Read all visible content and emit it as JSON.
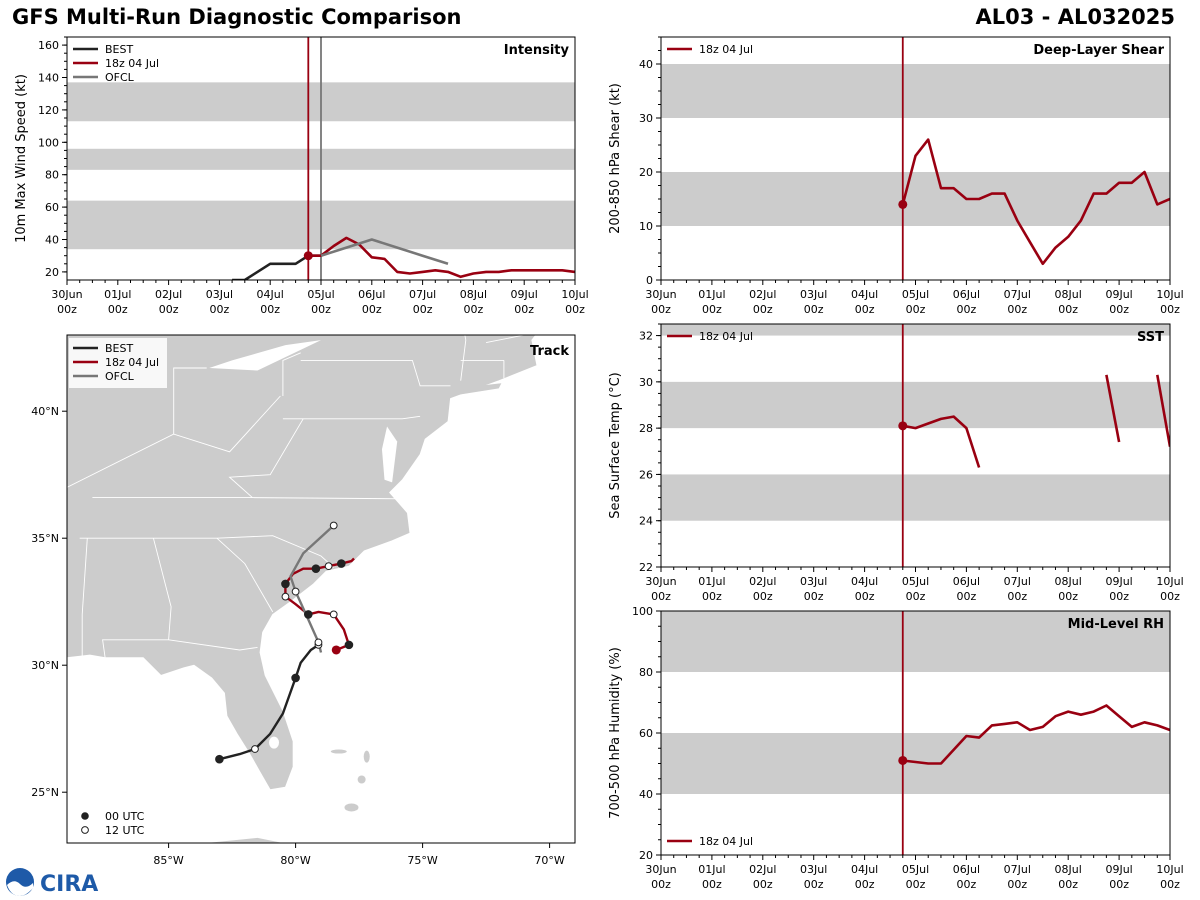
{
  "header": {
    "title": "GFS Multi-Run Diagnostic Comparison",
    "storm_id": "AL03 - AL032025"
  },
  "logo": {
    "text": "CIRA"
  },
  "colors": {
    "best": "#222222",
    "run": "#990011",
    "ofcl": "#777777",
    "band": "#cccccc",
    "land": "#cccccc",
    "border": "#ffffff"
  },
  "legend": {
    "best": "BEST",
    "run": "18z 04 Jul",
    "ofcl": "OFCL",
    "utc00": "00 UTC",
    "utc12": "12 UTC"
  },
  "time_axis": {
    "start_day": 0,
    "end_day": 10,
    "ticks": [
      [
        "30Jun",
        "00z"
      ],
      [
        "01Jul",
        "00z"
      ],
      [
        "02Jul",
        "00z"
      ],
      [
        "03Jul",
        "00z"
      ],
      [
        "04Jul",
        "00z"
      ],
      [
        "05Jul",
        "00z"
      ],
      [
        "06Jul",
        "00z"
      ],
      [
        "07Jul",
        "00z"
      ],
      [
        "08Jul",
        "00z"
      ],
      [
        "09Jul",
        "00z"
      ],
      [
        "10Jul",
        "00z"
      ]
    ]
  },
  "chart_data": [
    {
      "id": "intensity",
      "type": "line",
      "title": "Intensity",
      "ylabel": "10m Max Wind Speed (kt)",
      "ylim": [
        15,
        165
      ],
      "yticks": [
        20,
        40,
        60,
        80,
        100,
        120,
        140,
        160
      ],
      "bands": [
        [
          34,
          64
        ],
        [
          83,
          96
        ],
        [
          113,
          137
        ]
      ],
      "vlines": [
        {
          "x": 4.75,
          "series": "run"
        },
        {
          "x": 5.0,
          "series": "ofcl"
        }
      ],
      "series": [
        {
          "name": "BEST",
          "key": "best",
          "x": [
            3.25,
            3.5,
            4.0,
            4.5,
            4.75,
            5.0
          ],
          "y": [
            15,
            15,
            25,
            25,
            30,
            30
          ]
        },
        {
          "name": "18z 04 Jul",
          "key": "run",
          "x": [
            4.75,
            5.0,
            5.25,
            5.5,
            5.75,
            6.0,
            6.25,
            6.5,
            6.75,
            7.0,
            7.25,
            7.5,
            7.75,
            8.0,
            8.25,
            8.5,
            8.75,
            9.0,
            9.25,
            9.5,
            9.75,
            10.0
          ],
          "y": [
            30,
            30,
            36,
            41,
            37,
            29,
            28,
            20,
            19,
            20,
            21,
            20,
            17,
            19,
            20,
            20,
            21,
            21,
            21,
            21,
            21,
            20
          ],
          "start_marker": true
        },
        {
          "name": "OFCL",
          "key": "ofcl",
          "x": [
            5.0,
            5.5,
            6.0,
            6.5,
            7.0,
            7.5
          ],
          "y": [
            30,
            35,
            40,
            35,
            30,
            25
          ]
        }
      ]
    },
    {
      "id": "shear",
      "type": "line",
      "title": "Deep-Layer Shear",
      "ylabel": "200-850 hPa Shear (kt)",
      "ylim": [
        0,
        45
      ],
      "yticks": [
        0,
        10,
        20,
        30,
        40
      ],
      "bands": [
        [
          10,
          20
        ],
        [
          30,
          40
        ]
      ],
      "vlines": [
        {
          "x": 4.75,
          "series": "run"
        }
      ],
      "series": [
        {
          "name": "18z 04 Jul",
          "key": "run",
          "x": [
            4.75,
            5.0,
            5.25,
            5.5,
            5.75,
            6.0,
            6.25,
            6.5,
            6.75,
            7.0,
            7.25,
            7.5,
            7.75,
            8.0,
            8.25,
            8.5,
            8.75,
            9.0,
            9.25,
            9.5,
            9.75,
            10.0
          ],
          "y": [
            14,
            23,
            26,
            17,
            17,
            15,
            15,
            16,
            16,
            11,
            7,
            3,
            6,
            8,
            11,
            16,
            16,
            18,
            18,
            20,
            14,
            15
          ],
          "start_marker": true
        }
      ]
    },
    {
      "id": "sst",
      "type": "line",
      "title": "SST",
      "ylabel": "Sea Surface Temp (°C)",
      "ylim": [
        22,
        32.5
      ],
      "yticks": [
        22,
        24,
        26,
        28,
        30,
        32
      ],
      "bands": [
        [
          24,
          26
        ],
        [
          28,
          30
        ],
        [
          32,
          32.5
        ]
      ],
      "vlines": [
        {
          "x": 4.75,
          "series": "run"
        }
      ],
      "series": [
        {
          "name": "18z 04 Jul",
          "key": "run",
          "x": [
            4.75,
            5.0,
            5.25,
            5.5,
            5.75,
            6.0,
            6.25
          ],
          "y": [
            28.1,
            28.0,
            28.2,
            28.4,
            28.5,
            28.0,
            26.3
          ],
          "start_marker": true
        },
        {
          "name": "18z 04 Jul",
          "key": "run",
          "x": [
            8.75,
            9.0
          ],
          "y": [
            30.3,
            27.4
          ]
        },
        {
          "name": "18z 04 Jul",
          "key": "run",
          "x": [
            9.75,
            10.0
          ],
          "y": [
            30.3,
            27.2
          ]
        }
      ]
    },
    {
      "id": "rh",
      "type": "line",
      "title": "Mid-Level RH",
      "ylabel": "700-500 hPa Humidity (%)",
      "ylim": [
        20,
        100
      ],
      "yticks": [
        20,
        40,
        60,
        80,
        100
      ],
      "bands": [
        [
          40,
          60
        ],
        [
          80,
          100
        ]
      ],
      "vlines": [
        {
          "x": 4.75,
          "series": "run"
        }
      ],
      "series": [
        {
          "name": "18z 04 Jul",
          "key": "run",
          "x": [
            4.75,
            5.0,
            5.25,
            5.5,
            5.75,
            6.0,
            6.25,
            6.5,
            6.75,
            7.0,
            7.25,
            7.5,
            7.75,
            8.0,
            8.25,
            8.5,
            8.75,
            9.0,
            9.25,
            9.5,
            9.75,
            10.0
          ],
          "y": [
            51,
            50.5,
            50,
            50,
            54.5,
            59,
            58.5,
            62.5,
            63,
            63.5,
            61,
            62,
            65.5,
            67,
            66,
            67,
            69,
            65.5,
            62,
            63.5,
            62.5,
            61
          ],
          "start_marker": true
        }
      ]
    },
    {
      "id": "track",
      "type": "scatter",
      "title": "Track",
      "xlim": [
        -89,
        -69
      ],
      "ylim": [
        23,
        43
      ],
      "xticks": [
        -85,
        -80,
        -75,
        -70
      ],
      "xticklabels": [
        "85°W",
        "80°W",
        "75°W",
        "70°W"
      ],
      "yticks": [
        25,
        30,
        35,
        40
      ],
      "yticklabels": [
        "25°N",
        "30°N",
        "35°N",
        "40°N"
      ],
      "series": [
        {
          "name": "BEST",
          "key": "best",
          "lon": [
            -83.0,
            -82.2,
            -81.6,
            -81.0,
            -80.5,
            -80.0,
            -79.8,
            -79.4,
            -79.1
          ],
          "lat": [
            26.3,
            26.5,
            26.7,
            27.3,
            28.1,
            29.5,
            30.1,
            30.6,
            30.8
          ],
          "markers": [
            "00",
            null,
            "12",
            null,
            null,
            "00",
            null,
            null,
            "12"
          ]
        },
        {
          "name": "18z 04 Jul",
          "key": "run",
          "lon": [
            -78.4,
            -77.9,
            -78.1,
            -78.5,
            -79.1,
            -79.5,
            -80.0,
            -80.4,
            -80.4,
            -80.1,
            -79.7,
            -79.2,
            -78.7,
            -78.2,
            -77.8,
            -77.7
          ],
          "lat": [
            30.6,
            30.8,
            31.4,
            32.0,
            32.1,
            32.0,
            32.4,
            32.7,
            33.2,
            33.6,
            33.8,
            33.8,
            33.9,
            34.0,
            34.1,
            34.2
          ],
          "markers": [
            "run",
            "00",
            null,
            "12",
            null,
            "00",
            null,
            "12",
            "00",
            null,
            null,
            "00",
            "12",
            "00",
            null,
            null
          ]
        },
        {
          "name": "OFCL",
          "key": "ofcl",
          "lon": [
            -79.0,
            -79.1,
            -79.5,
            -80.0,
            -80.2,
            -79.7,
            -78.5
          ],
          "lat": [
            30.5,
            30.9,
            31.8,
            32.9,
            33.5,
            34.4,
            35.5
          ],
          "markers": [
            null,
            "12",
            null,
            "12",
            null,
            null,
            "12"
          ]
        }
      ]
    }
  ]
}
